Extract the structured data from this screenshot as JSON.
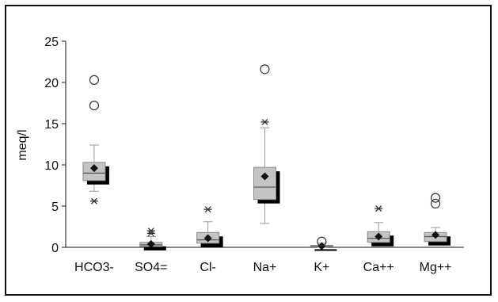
{
  "chart_data": {
    "type": "box",
    "title": "",
    "xlabel": "",
    "ylabel": "meq/l",
    "ylim": [
      0,
      25
    ],
    "yticks": [
      0,
      5,
      10,
      15,
      20,
      25
    ],
    "grid": false,
    "legend": "none",
    "categories": [
      "HCO3-",
      "SO4=",
      "Cl-",
      "Na+",
      "K+",
      "Ca++",
      "Mg++"
    ],
    "boxes": [
      {
        "category": "HCO3-",
        "whisker_low": 6.8,
        "q1": 8.1,
        "median": 9.0,
        "q3": 10.3,
        "whisker_high": 12.4,
        "mean": 9.6,
        "extremes_low": [
          5.6
        ],
        "outliers": [
          17.2,
          20.3
        ]
      },
      {
        "category": "SO4=",
        "whisker_low": 0.0,
        "q1": 0.1,
        "median": 0.3,
        "q3": 0.6,
        "whisker_high": 1.3,
        "mean": 0.4,
        "extremes_high": [
          1.7,
          2.0
        ],
        "outliers": []
      },
      {
        "category": "Cl-",
        "whisker_low": 0.3,
        "q1": 0.5,
        "median": 0.9,
        "q3": 1.8,
        "whisker_high": 3.1,
        "mean": 1.1,
        "extremes_high": [
          4.6
        ],
        "outliers": []
      },
      {
        "category": "Na+",
        "whisker_low": 2.9,
        "q1": 5.8,
        "median": 7.3,
        "q3": 9.7,
        "whisker_high": 14.5,
        "mean": 8.6,
        "extremes_high": [
          15.2
        ],
        "outliers": [
          21.6
        ]
      },
      {
        "category": "K+",
        "whisker_low": 0.0,
        "q1": 0.05,
        "median": 0.1,
        "q3": 0.25,
        "whisker_high": 0.5,
        "mean": 0.15,
        "extremes_high": [],
        "outliers": [
          0.7
        ]
      },
      {
        "category": "Ca++",
        "whisker_low": 0.2,
        "q1": 0.6,
        "median": 1.1,
        "q3": 1.9,
        "whisker_high": 3.0,
        "mean": 1.3,
        "extremes_high": [
          4.7
        ],
        "outliers": []
      },
      {
        "category": "Mg++",
        "whisker_low": 0.3,
        "q1": 0.7,
        "median": 1.3,
        "q3": 1.8,
        "whisker_high": 2.4,
        "mean": 1.5,
        "extremes_high": [],
        "outliers": [
          5.3,
          6.0
        ]
      }
    ],
    "colors": {
      "box_fill": "#c4c4c4",
      "box_shadow": "#000000",
      "whisker": "#9a9a9a",
      "median": "#555555",
      "mean": "#111111",
      "outlier": "#333333"
    }
  }
}
